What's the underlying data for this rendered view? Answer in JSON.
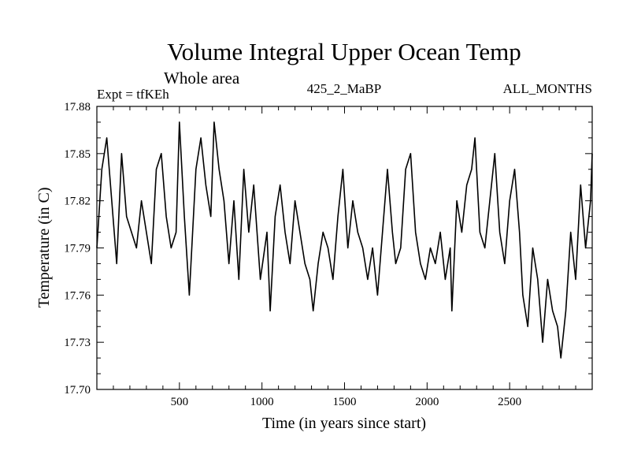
{
  "header": {
    "title": "Volume Integral Upper Ocean Temp",
    "subtitle": "Whole area",
    "expt": "Expt = tfKEh",
    "center_label": "425_2_MaBP",
    "right_label": "ALL_MONTHS"
  },
  "chart_data": {
    "type": "line",
    "xlabel": "Time (in years since start)",
    "ylabel": "Temperature (in C)",
    "xlim": [
      0,
      3000
    ],
    "ylim": [
      17.7,
      17.88
    ],
    "x_ticks": [
      500,
      1000,
      1500,
      2000,
      2500
    ],
    "y_ticks": [
      "17.70",
      "17.73",
      "17.76",
      "17.79",
      "17.82",
      "17.85",
      "17.88"
    ],
    "grid": false,
    "legend": "none",
    "line_color": "#000000",
    "series": [
      {
        "x": [
          0,
          30,
          60,
          90,
          120,
          150,
          180,
          210,
          240,
          270,
          300,
          330,
          360,
          390,
          420,
          450,
          480,
          500,
          530,
          560,
          580,
          600,
          630,
          660,
          690,
          710,
          740,
          770,
          800,
          830,
          860,
          890,
          920,
          950,
          990,
          1030,
          1050,
          1080,
          1110,
          1140,
          1170,
          1200,
          1230,
          1260,
          1290,
          1310,
          1340,
          1370,
          1400,
          1430,
          1460,
          1490,
          1520,
          1550,
          1580,
          1610,
          1640,
          1670,
          1700,
          1730,
          1760,
          1790,
          1810,
          1840,
          1870,
          1900,
          1930,
          1960,
          1990,
          2020,
          2050,
          2080,
          2110,
          2140,
          2150,
          2180,
          2210,
          2240,
          2270,
          2290,
          2320,
          2350,
          2380,
          2410,
          2440,
          2470,
          2500,
          2530,
          2560,
          2580,
          2610,
          2640,
          2670,
          2700,
          2730,
          2760,
          2790,
          2810,
          2840,
          2870,
          2900,
          2930,
          2960,
          2990,
          3000
        ],
        "y": [
          17.79,
          17.84,
          17.86,
          17.82,
          17.78,
          17.85,
          17.81,
          17.8,
          17.79,
          17.82,
          17.8,
          17.78,
          17.84,
          17.85,
          17.81,
          17.79,
          17.8,
          17.87,
          17.81,
          17.76,
          17.8,
          17.84,
          17.86,
          17.83,
          17.81,
          17.87,
          17.84,
          17.82,
          17.78,
          17.82,
          17.77,
          17.84,
          17.8,
          17.83,
          17.77,
          17.8,
          17.75,
          17.81,
          17.83,
          17.8,
          17.78,
          17.82,
          17.8,
          17.78,
          17.77,
          17.75,
          17.78,
          17.8,
          17.79,
          17.77,
          17.81,
          17.84,
          17.79,
          17.82,
          17.8,
          17.79,
          17.77,
          17.79,
          17.76,
          17.8,
          17.84,
          17.8,
          17.78,
          17.79,
          17.84,
          17.85,
          17.8,
          17.78,
          17.77,
          17.79,
          17.78,
          17.8,
          17.77,
          17.79,
          17.75,
          17.82,
          17.8,
          17.83,
          17.84,
          17.86,
          17.8,
          17.79,
          17.82,
          17.85,
          17.8,
          17.78,
          17.82,
          17.84,
          17.8,
          17.76,
          17.74,
          17.79,
          17.77,
          17.73,
          17.77,
          17.75,
          17.74,
          17.72,
          17.75,
          17.8,
          17.77,
          17.83,
          17.79,
          17.82,
          17.85
        ]
      }
    ]
  }
}
